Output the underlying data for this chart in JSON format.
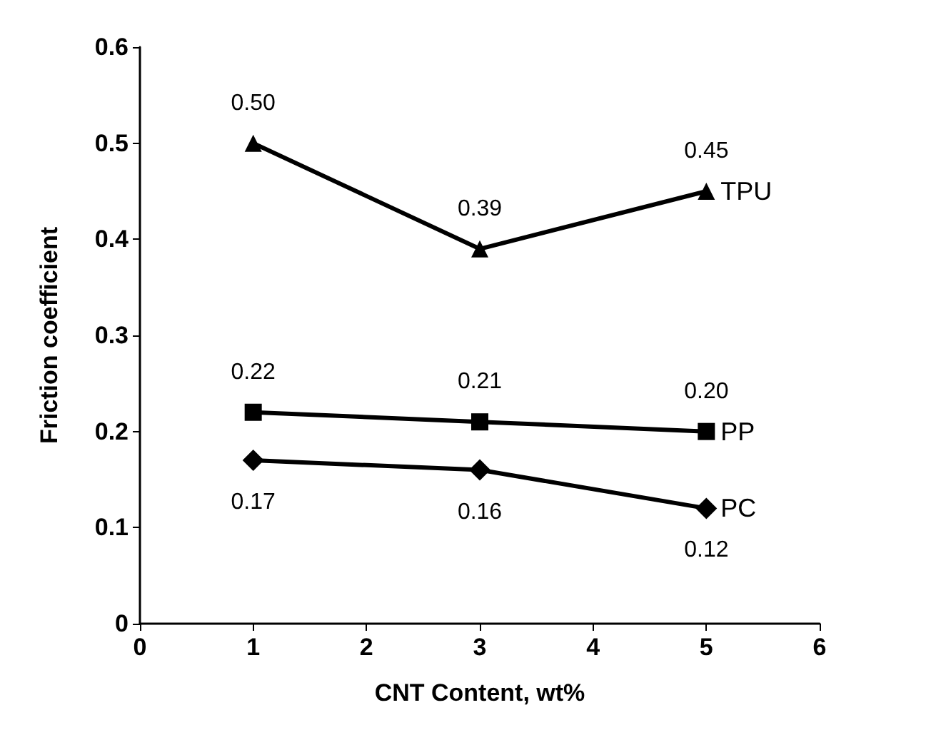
{
  "chart_data": {
    "type": "line",
    "xlabel": "CNT Content, wt%",
    "ylabel": "Friction coefficient",
    "x": [
      1,
      3,
      5
    ],
    "series": [
      {
        "name": "TPU",
        "color": "#000000",
        "marker": "triangle",
        "values": [
          0.5,
          0.39,
          0.45
        ],
        "value_labels": [
          "0.50",
          "0.39",
          "0.45"
        ]
      },
      {
        "name": "PP",
        "color": "#000000",
        "marker": "square",
        "values": [
          0.22,
          0.21,
          0.2
        ],
        "value_labels": [
          "0.22",
          "0.21",
          "0.20"
        ]
      },
      {
        "name": "PC",
        "color": "#000000",
        "marker": "diamond",
        "values": [
          0.17,
          0.16,
          0.12
        ],
        "value_labels": [
          "0.17",
          "0.16",
          "0.12"
        ]
      }
    ],
    "xlim": [
      0,
      6
    ],
    "xticks": [
      0,
      1,
      2,
      3,
      4,
      5,
      6
    ],
    "ylim": [
      0,
      0.6
    ],
    "yticks": [
      0,
      0.1,
      0.2,
      0.3,
      0.4,
      0.5,
      0.6
    ],
    "grid": false,
    "legend": false,
    "line_style": "solid"
  }
}
